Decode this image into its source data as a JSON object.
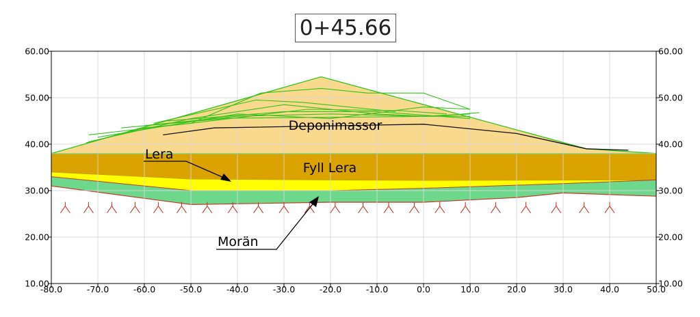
{
  "station": "0+45.66",
  "colors": {
    "deponi": "#f9d98d",
    "fyll_lera": "#dba300",
    "lera": "#ffff00",
    "moran": "#6dd88c",
    "grid": "#d8d8d8",
    "profile_green": "#34c21a",
    "boundary_red": "#c0392b",
    "axis": "#000000"
  },
  "labels": {
    "deponi": "Deponimassor",
    "fyll_lera": "Fyll Lera",
    "lera": "Lera",
    "moran": "Morän"
  },
  "chart_data": {
    "type": "diagram",
    "x_ticks": [
      "-80.0",
      "-70.0",
      "-60.0",
      "-50.0",
      "-40.0",
      "-30.0",
      "-20.0",
      "-10.0",
      "0.0",
      "10.0",
      "20.0",
      "30.0",
      "40.0",
      "50.0"
    ],
    "y_ticks_left": [
      "60.00",
      "50.00",
      "40.00",
      "30.00",
      "20.00",
      "10.00"
    ],
    "y_ticks_right": [
      "60.00",
      "50.00",
      "40.00",
      "30.00",
      "20.00",
      "10.00"
    ],
    "xlim": [
      -80,
      50
    ],
    "ylim": [
      10,
      60
    ],
    "layers": {
      "deponi_top": [
        [
          -80,
          38
        ],
        [
          -22,
          54.5
        ],
        [
          35,
          39
        ],
        [
          50,
          38
        ]
      ],
      "fyll_top": [
        [
          -80,
          38
        ],
        [
          50,
          38
        ]
      ],
      "fyll_bottom": [
        [
          -80,
          34
        ],
        [
          -50,
          32.5
        ],
        [
          -20,
          32.3
        ],
        [
          0,
          32.2
        ],
        [
          50,
          32.3
        ]
      ],
      "lera_bottom": [
        [
          -80,
          33
        ],
        [
          -50,
          30
        ],
        [
          -20,
          30
        ],
        [
          0,
          30.5
        ],
        [
          30,
          31.5
        ],
        [
          50,
          32.3
        ]
      ],
      "moran_bottom": [
        [
          -80,
          31
        ],
        [
          -50,
          27
        ],
        [
          -20,
          27.5
        ],
        [
          0,
          27.5
        ],
        [
          20,
          28.5
        ],
        [
          30,
          29.5
        ],
        [
          50,
          28.8
        ]
      ],
      "black_line": [
        [
          -56,
          42
        ],
        [
          -45,
          43.5
        ],
        [
          0,
          44.3
        ],
        [
          20,
          42.3
        ],
        [
          35,
          39
        ],
        [
          44,
          38.7
        ]
      ]
    },
    "green_lines": [
      [
        [
          -72.5,
          40.3
        ],
        [
          -60,
          43.5
        ],
        [
          -50,
          44.5
        ],
        [
          -35,
          51
        ],
        [
          -22,
          52
        ],
        [
          -12,
          51
        ],
        [
          0,
          51
        ],
        [
          10,
          47.5
        ]
      ],
      [
        [
          -72,
          40.5
        ],
        [
          -50,
          45.5
        ],
        [
          -30,
          48.5
        ],
        [
          -10,
          46.5
        ],
        [
          0,
          46
        ],
        [
          10,
          46.5
        ]
      ],
      [
        [
          -70,
          41.5
        ],
        [
          -40,
          46.5
        ],
        [
          -20,
          45.5
        ],
        [
          0,
          48
        ],
        [
          10,
          47.5
        ]
      ],
      [
        [
          -72,
          42
        ],
        [
          -50,
          44.5
        ],
        [
          -25,
          47.5
        ],
        [
          -5,
          47.2
        ],
        [
          5,
          46.5
        ]
      ],
      [
        [
          -60,
          44
        ],
        [
          -40,
          46
        ],
        [
          -20,
          46.5
        ],
        [
          0,
          46
        ],
        [
          10,
          46
        ]
      ],
      [
        [
          -55,
          45
        ],
        [
          -30,
          47
        ],
        [
          -10,
          47
        ],
        [
          10,
          45.5
        ]
      ],
      [
        [
          -65,
          43.5
        ],
        [
          -42,
          45.6
        ],
        [
          -18,
          45.8
        ],
        [
          3,
          46
        ],
        [
          12,
          46.8
        ]
      ],
      [
        [
          -58,
          44.5
        ],
        [
          -36,
          49.5
        ],
        [
          -26,
          49
        ],
        [
          -14,
          47.8
        ],
        [
          -6,
          47
        ]
      ]
    ],
    "tick_marks_x": [
      -77,
      -72,
      -67,
      -62,
      -57,
      -52,
      -46.5,
      -41,
      -35.5,
      -30,
      -24.5,
      -19,
      -13,
      -7.5,
      -2,
      3.5,
      9,
      15.5,
      22,
      28.5,
      34.5,
      40
    ]
  }
}
